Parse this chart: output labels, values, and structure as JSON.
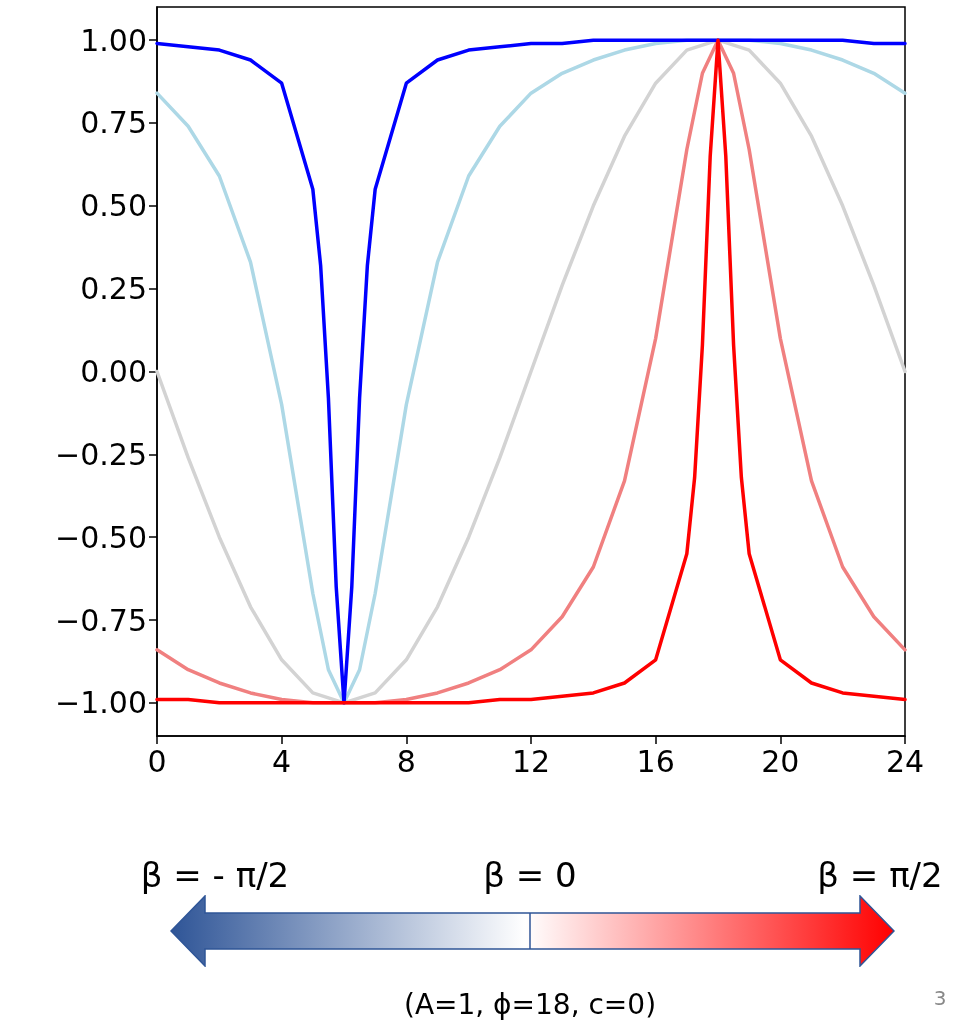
{
  "chart_data": {
    "type": "line",
    "xlim": [
      0,
      24
    ],
    "ylim": [
      -1.1,
      1.1
    ],
    "xticks": [
      0,
      4,
      8,
      12,
      16,
      20,
      24
    ],
    "yticks": [
      {
        "value": -1,
        "label": "−1.00"
      },
      {
        "value": -0.75,
        "label": "−0.75"
      },
      {
        "value": -0.5,
        "label": "−0.50"
      },
      {
        "value": -0.25,
        "label": "−0.25"
      },
      {
        "value": 0,
        "label": "0.00"
      },
      {
        "value": 0.25,
        "label": "0.25"
      },
      {
        "value": 0.5,
        "label": "0.50"
      },
      {
        "value": 0.75,
        "label": "0.75"
      },
      {
        "value": 1,
        "label": "1.00"
      }
    ],
    "series": [
      {
        "color": "#d3d3d3",
        "x": [
          0,
          1,
          2,
          3,
          4,
          5,
          6,
          7,
          8,
          9,
          10,
          11,
          12,
          13,
          14,
          15,
          16,
          17,
          18,
          19,
          20,
          21,
          22,
          23,
          24
        ],
        "values": [
          0,
          -0.26,
          -0.5,
          -0.71,
          -0.87,
          -0.97,
          -1,
          -0.97,
          -0.87,
          -0.71,
          -0.5,
          -0.26,
          0,
          0.26,
          0.5,
          0.71,
          0.87,
          0.97,
          1,
          0.97,
          0.87,
          0.71,
          0.5,
          0.26,
          0
        ]
      },
      {
        "color": "#add8e6",
        "x": [
          0,
          1,
          2,
          3,
          4,
          5,
          5.5,
          6,
          6.5,
          7,
          8,
          9,
          10,
          11,
          12,
          13,
          14,
          15,
          16,
          17,
          18,
          19,
          20,
          21,
          22,
          23,
          24
        ],
        "values": [
          0.84,
          0.74,
          0.59,
          0.33,
          -0.1,
          -0.67,
          -0.9,
          -1,
          -0.9,
          -0.67,
          -0.1,
          0.33,
          0.59,
          0.74,
          0.84,
          0.9,
          0.94,
          0.97,
          0.99,
          1,
          1,
          1,
          0.99,
          0.97,
          0.94,
          0.9,
          0.84
        ]
      },
      {
        "color": "#f08080",
        "x": [
          0,
          1,
          2,
          3,
          4,
          5,
          6,
          7,
          8,
          9,
          10,
          11,
          12,
          13,
          14,
          15,
          16,
          17,
          17.5,
          18,
          18.5,
          19,
          20,
          21,
          22,
          23,
          24
        ],
        "values": [
          -0.84,
          -0.9,
          -0.94,
          -0.97,
          -0.99,
          -1,
          -1,
          -1,
          -0.99,
          -0.97,
          -0.94,
          -0.9,
          -0.84,
          -0.74,
          -0.59,
          -0.33,
          0.1,
          0.67,
          0.9,
          1,
          0.9,
          0.67,
          0.1,
          -0.33,
          -0.59,
          -0.74,
          -0.84
        ]
      },
      {
        "color": "#0000ff",
        "x": [
          0,
          1,
          2,
          3,
          4,
          5,
          5.25,
          5.5,
          5.75,
          6,
          6.25,
          6.5,
          6.75,
          7,
          8,
          9,
          10,
          11,
          12,
          13,
          14,
          15,
          16,
          17,
          18,
          19,
          20,
          21,
          22,
          23,
          24
        ],
        "values": [
          0.99,
          0.98,
          0.97,
          0.94,
          0.87,
          0.55,
          0.32,
          -0.08,
          -0.65,
          -1,
          -0.65,
          -0.08,
          0.32,
          0.55,
          0.87,
          0.94,
          0.97,
          0.98,
          0.99,
          0.99,
          1,
          1,
          1,
          1,
          1,
          1,
          1,
          1,
          1,
          0.99,
          0.99
        ]
      },
      {
        "color": "#ff0000",
        "x": [
          0,
          1,
          2,
          3,
          4,
          5,
          6,
          7,
          8,
          9,
          10,
          11,
          12,
          13,
          14,
          15,
          16,
          17,
          17.25,
          17.5,
          17.75,
          18,
          18.25,
          18.5,
          18.75,
          19,
          20,
          21,
          22,
          23,
          24
        ],
        "values": [
          -0.99,
          -0.99,
          -1,
          -1,
          -1,
          -1,
          -1,
          -1,
          -1,
          -1,
          -1,
          -0.99,
          -0.99,
          -0.98,
          -0.97,
          -0.94,
          -0.87,
          -0.55,
          -0.32,
          0.08,
          0.65,
          1,
          0.65,
          0.08,
          -0.32,
          -0.55,
          -0.87,
          -0.94,
          -0.97,
          -0.98,
          -0.99
        ]
      }
    ],
    "annotations": [
      "β = - π/2",
      "β = 0",
      "β = π/2",
      "(A=1, ϕ=18, c=0)",
      "3"
    ]
  }
}
